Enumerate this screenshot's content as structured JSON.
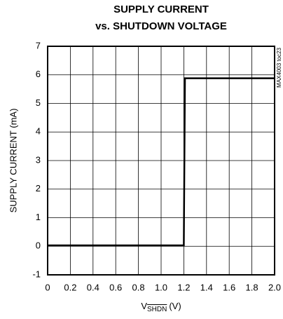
{
  "chart_data": {
    "type": "line",
    "title": [
      "SUPPLY CURRENT",
      "vs. SHUTDOWN VOLTAGE"
    ],
    "xlabel": "V",
    "xlabel_sub": "SHDN",
    "xlabel_unit": "(V)",
    "ylabel": "SUPPLY CURRENT (mA)",
    "annotation": "MAX4003 toc23",
    "x": [
      0,
      1.2,
      1.21,
      2.0
    ],
    "values": [
      0.03,
      0.03,
      5.88,
      5.88
    ],
    "color": "#000000",
    "xlim": [
      0,
      2.0
    ],
    "xticks": [
      0,
      0.2,
      0.4,
      0.6,
      0.8,
      {
        "value": 1,
        "label": "1.0"
      },
      1.2,
      1.4,
      1.6,
      1.8,
      {
        "value": 2,
        "label": "2.0"
      }
    ],
    "ylim": [
      -1,
      7
    ],
    "yticks": [
      -1,
      0,
      1,
      2,
      3,
      4,
      5,
      6,
      7
    ],
    "grid": true
  }
}
